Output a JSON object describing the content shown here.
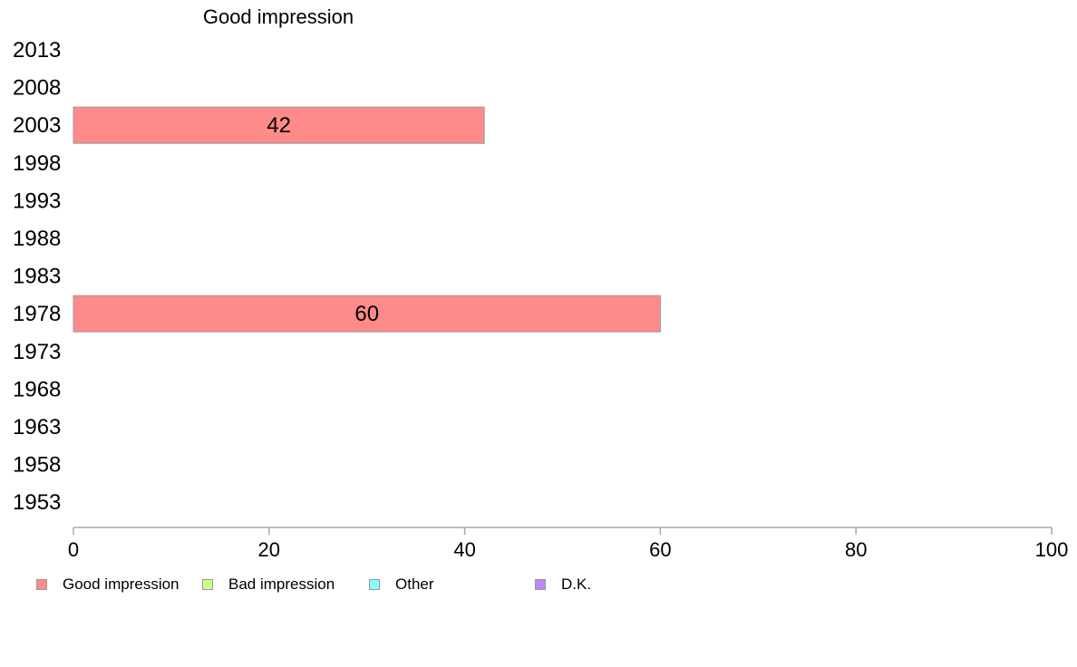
{
  "chart_data": {
    "type": "bar",
    "orientation": "horizontal",
    "title": "Good impression",
    "categories": [
      "2013",
      "2008",
      "2003",
      "1998",
      "1993",
      "1988",
      "1983",
      "1978",
      "1973",
      "1968",
      "1963",
      "1958",
      "1953"
    ],
    "series": [
      {
        "name": "Good impression",
        "color": "#ff8a8a",
        "values": [
          null,
          null,
          42,
          null,
          null,
          null,
          null,
          60,
          null,
          null,
          null,
          null,
          null
        ]
      }
    ],
    "xlim": [
      0,
      100
    ],
    "xticks": [
      "0",
      "20",
      "40",
      "60",
      "80",
      "100"
    ],
    "grid": false,
    "legend_position": "bottom-left"
  },
  "legend": [
    {
      "label": "Good impression",
      "color": "#ff8a8a"
    },
    {
      "label": "Bad impression",
      "color": "#ccff88"
    },
    {
      "label": "Other",
      "color": "#88ffff"
    },
    {
      "label": "D.K.",
      "color": "#bb88ff"
    }
  ]
}
